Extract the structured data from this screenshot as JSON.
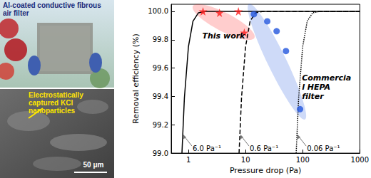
{
  "photos": [
    {
      "caption": "Al-coated conductive fibrous air filter"
    },
    {
      "caption": "Electrostatically captured KCl nanoparticles",
      "scale_bar": "50 μm"
    }
  ],
  "chart_data": {
    "type": "scatter",
    "x_label": "Pressure drop (Pa)",
    "y_label": "Removal efficiency (%)",
    "log": "x",
    "grid": false,
    "xlim": [
      0.5,
      1000
    ],
    "xticks": [
      1,
      10,
      100,
      1000
    ],
    "ylim": [
      99.0,
      100.05
    ],
    "yticks": [
      {
        "value": 99.0,
        "label": "99.0"
      },
      99.2,
      99.4,
      99.6,
      99.8,
      {
        "value": 100.0,
        "label": "100.0"
      }
    ],
    "annotations": [
      {
        "text": "Commercial HEPA filter"
      }
    ],
    "series": [
      {
        "name": "This work",
        "type": "scatter",
        "marker": "star",
        "color": "#ff1a1a",
        "x": [
          1.8,
          3.5,
          7.5,
          9.5
        ],
        "values": [
          100.0,
          99.99,
          100.0,
          99.85
        ]
      },
      {
        "type": "scatter",
        "marker": "circle",
        "color": "#2255dd",
        "x": [
          14,
          24,
          35,
          51,
          90
        ],
        "values": [
          99.98,
          99.93,
          99.86,
          99.72,
          99.31
        ]
      },
      {
        "name": "6.0 Pa⁻¹",
        "type": "line",
        "line_style": "solid",
        "color": "#000000",
        "x": [
          0.77,
          0.85,
          1.0,
          1.2,
          1.5,
          2.0,
          1000
        ],
        "values": [
          99.0,
          99.39,
          99.75,
          99.93,
          99.99,
          100.0,
          100.0
        ]
      },
      {
        "name": "0.6 Pa⁻¹",
        "type": "line",
        "line_style": "dashed",
        "color": "#000000",
        "x": [
          7.7,
          8.5,
          10,
          12,
          15,
          20,
          1000
        ],
        "values": [
          99.0,
          99.39,
          99.75,
          99.93,
          99.99,
          100.0,
          100.0
        ]
      },
      {
        "name": "0.06 Pa⁻¹",
        "type": "line",
        "line_style": "dotted",
        "color": "#000000",
        "x": [
          77,
          85,
          100,
          120,
          150,
          200,
          1000
        ],
        "values": [
          99.0,
          99.39,
          99.75,
          99.93,
          99.99,
          100.0,
          100.0
        ]
      }
    ]
  }
}
